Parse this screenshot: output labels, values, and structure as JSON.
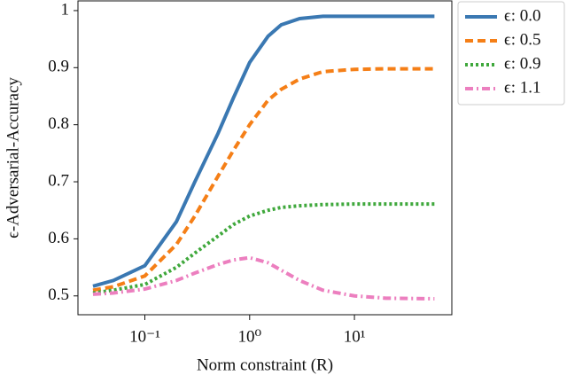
{
  "chart_data": {
    "type": "line",
    "xlabel": "Norm constraint (R)",
    "ylabel": "ϵ-Adversarial-Accuracy",
    "x_scale": "log",
    "x": [
      0.032,
      0.05,
      0.1,
      0.2,
      0.3,
      0.5,
      0.7,
      1,
      1.5,
      2,
      3,
      5,
      10,
      20,
      58
    ],
    "series": [
      {
        "name": "ϵ: 0.0",
        "color": "#3a78b2",
        "style": "solid",
        "values": [
          0.517,
          0.527,
          0.553,
          0.63,
          0.7,
          0.785,
          0.847,
          0.909,
          0.955,
          0.975,
          0.986,
          0.99,
          0.99,
          0.99,
          0.99
        ]
      },
      {
        "name": "ϵ: 0.5",
        "color": "#f57f17",
        "style": "dashed",
        "values": [
          0.51,
          0.516,
          0.535,
          0.59,
          0.64,
          0.71,
          0.755,
          0.8,
          0.843,
          0.862,
          0.88,
          0.893,
          0.897,
          0.898,
          0.898
        ]
      },
      {
        "name": "ϵ: 0.9",
        "color": "#3fa83c",
        "style": "dotted",
        "values": [
          0.505,
          0.51,
          0.52,
          0.55,
          0.575,
          0.605,
          0.625,
          0.64,
          0.65,
          0.655,
          0.658,
          0.66,
          0.661,
          0.661,
          0.661
        ]
      },
      {
        "name": "ϵ: 1.1",
        "color": "#ec7fbf",
        "style": "dashdot",
        "values": [
          0.503,
          0.505,
          0.512,
          0.527,
          0.54,
          0.555,
          0.563,
          0.567,
          0.558,
          0.545,
          0.527,
          0.51,
          0.5,
          0.496,
          0.495
        ]
      }
    ],
    "xlim": [
      0.023,
      85
    ],
    "ylim": [
      0.467,
      1.017
    ],
    "xticks": [
      {
        "value": 0.1,
        "label": "10⁻¹"
      },
      {
        "value": 1,
        "label": "10⁰"
      },
      {
        "value": 10,
        "label": "10¹"
      }
    ],
    "yticks": [
      0.5,
      0.6,
      0.7,
      0.8,
      0.9,
      1
    ],
    "grid": false,
    "legend": "outside-right"
  }
}
